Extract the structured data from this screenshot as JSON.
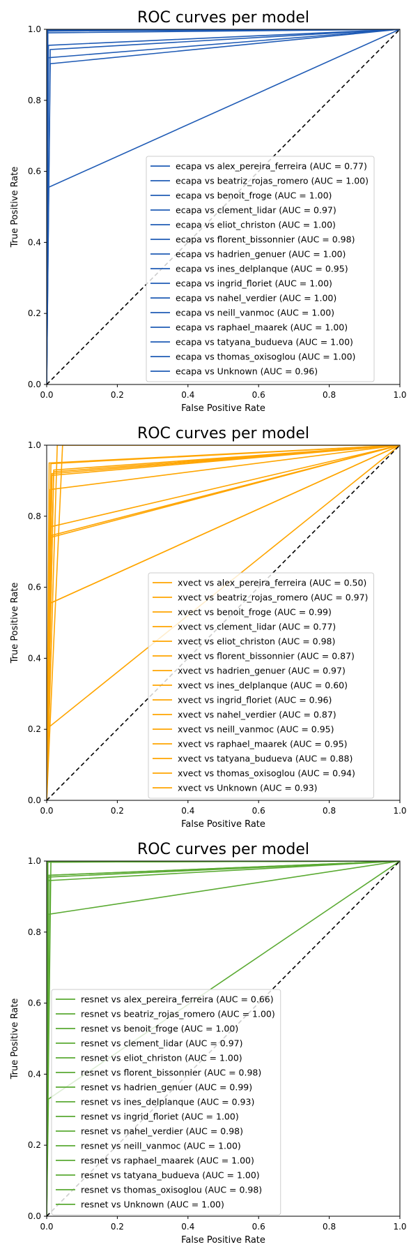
{
  "chart_data": [
    {
      "type": "line",
      "title": "ROC curves per model",
      "xlabel": "False Positive Rate",
      "ylabel": "True Positive Rate",
      "xlim": [
        0,
        1
      ],
      "ylim": [
        0,
        1
      ],
      "xticks": [
        "0.0",
        "0.2",
        "0.4",
        "0.6",
        "0.8",
        "1.0"
      ],
      "yticks": [
        "0.0",
        "0.2",
        "0.4",
        "0.6",
        "0.8",
        "1.0"
      ],
      "grid": false,
      "legend_position": "lower-right",
      "color": "#1f5bb5",
      "diagonal_color": "#000000",
      "series": [
        {
          "name": "ecapa vs alex_pereira_ferreira (AUC = 0.77)",
          "x": [
            0,
            0.005,
            1
          ],
          "y": [
            0,
            0.555,
            1
          ]
        },
        {
          "name": "ecapa vs beatriz_rojas_romero (AUC = 1.00)",
          "x": [
            0,
            0.003,
            1
          ],
          "y": [
            0,
            1.0,
            1
          ]
        },
        {
          "name": "ecapa vs benoit_froge (AUC = 1.00)",
          "x": [
            0,
            0.003,
            1
          ],
          "y": [
            0,
            0.995,
            1
          ]
        },
        {
          "name": "ecapa vs clement_lidar (AUC = 0.97)",
          "x": [
            0,
            0.01,
            1
          ],
          "y": [
            0,
            0.943,
            1
          ]
        },
        {
          "name": "ecapa vs eliot_christon (AUC = 1.00)",
          "x": [
            0,
            0.003,
            1
          ],
          "y": [
            0,
            0.99,
            1
          ]
        },
        {
          "name": "ecapa vs florent_bissonnier (AUC = 0.98)",
          "x": [
            0,
            0.005,
            1
          ],
          "y": [
            0,
            0.955,
            1
          ]
        },
        {
          "name": "ecapa vs hadrien_genuer (AUC = 1.00)",
          "x": [
            0,
            0.003,
            1
          ],
          "y": [
            0,
            0.998,
            1
          ]
        },
        {
          "name": "ecapa vs ines_delplanque (AUC = 0.95)",
          "x": [
            0,
            0.01,
            1
          ],
          "y": [
            0,
            0.903,
            1
          ]
        },
        {
          "name": "ecapa vs ingrid_floriet (AUC = 1.00)",
          "x": [
            0,
            0.003,
            1
          ],
          "y": [
            0,
            0.997,
            1
          ]
        },
        {
          "name": "ecapa vs nahel_verdier (AUC = 1.00)",
          "x": [
            0,
            0.003,
            1
          ],
          "y": [
            0,
            0.996,
            1
          ]
        },
        {
          "name": "ecapa vs neill_vanmoc (AUC = 1.00)",
          "x": [
            0,
            0.003,
            1
          ],
          "y": [
            0,
            0.999,
            1
          ]
        },
        {
          "name": "ecapa vs raphael_maarek (AUC = 1.00)",
          "x": [
            0,
            0.003,
            1
          ],
          "y": [
            0,
            0.998,
            1
          ]
        },
        {
          "name": "ecapa vs tatyana_budueva (AUC = 1.00)",
          "x": [
            0,
            0.003,
            1
          ],
          "y": [
            0,
            0.997,
            1
          ]
        },
        {
          "name": "ecapa vs thomas_oxisoglou (AUC = 1.00)",
          "x": [
            0,
            0.003,
            1
          ],
          "y": [
            0,
            0.999,
            1
          ]
        },
        {
          "name": "ecapa vs Unknown (AUC = 0.96)",
          "x": [
            0,
            0.005,
            1
          ],
          "y": [
            0,
            0.92,
            1
          ]
        }
      ]
    },
    {
      "type": "line",
      "title": "ROC curves per model",
      "xlabel": "False Positive Rate",
      "ylabel": "True Positive Rate",
      "xlim": [
        0,
        1
      ],
      "ylim": [
        0,
        1
      ],
      "xticks": [
        "0.0",
        "0.2",
        "0.4",
        "0.6",
        "0.8",
        "1.0"
      ],
      "yticks": [
        "0.0",
        "0.2",
        "0.4",
        "0.6",
        "0.8",
        "1.0"
      ],
      "grid": false,
      "legend_position": "lower-right",
      "color": "#ffa500",
      "diagonal_color": "#000000",
      "series": [
        {
          "name": "xvect vs alex_pereira_ferreira (AUC = 0.50)",
          "x": [
            0,
            0.005,
            1
          ],
          "y": [
            0,
            0.205,
            1
          ]
        },
        {
          "name": "xvect vs beatriz_rojas_romero (AUC = 0.97)",
          "x": [
            0,
            0.012,
            1
          ],
          "y": [
            0,
            0.948,
            1
          ]
        },
        {
          "name": "xvect vs benoit_froge (AUC = 0.99)",
          "x": [
            0,
            0.007,
            1
          ],
          "y": [
            0,
            0.95,
            1
          ]
        },
        {
          "name": "xvect vs clement_lidar (AUC = 0.77)",
          "x": [
            0,
            0.01,
            1
          ],
          "y": [
            0,
            0.555,
            1
          ]
        },
        {
          "name": "xvect vs eliot_christon (AUC = 0.98)",
          "x": [
            0,
            0.02,
            1
          ],
          "y": [
            0,
            0.925,
            1
          ]
        },
        {
          "name": "xvect vs florent_bissonnier (AUC = 0.87)",
          "x": [
            0,
            0.01,
            1
          ],
          "y": [
            0,
            0.745,
            1
          ]
        },
        {
          "name": "xvect vs hadrien_genuer (AUC = 0.97)",
          "x": [
            0,
            0.045,
            1
          ],
          "y": [
            0,
            1.0,
            1
          ]
        },
        {
          "name": "xvect vs ines_delplanque (AUC = 0.60)",
          "x": [
            0,
            0.01,
            1
          ],
          "y": [
            0,
            0.555,
            1
          ]
        },
        {
          "name": "xvect vs ingrid_floriet (AUC = 0.96)",
          "x": [
            0,
            0.015,
            1
          ],
          "y": [
            0,
            0.915,
            1
          ]
        },
        {
          "name": "xvect vs nahel_verdier (AUC = 0.87)",
          "x": [
            0,
            0.01,
            1
          ],
          "y": [
            0,
            0.77,
            1
          ]
        },
        {
          "name": "xvect vs neill_vanmoc (AUC = 0.95)",
          "x": [
            0,
            0.03,
            1
          ],
          "y": [
            0,
            1.0,
            1
          ]
        },
        {
          "name": "xvect vs raphael_maarek (AUC = 0.95)",
          "x": [
            0,
            0.01,
            1
          ],
          "y": [
            0,
            0.875,
            1
          ]
        },
        {
          "name": "xvect vs tatyana_budueva (AUC = 0.88)",
          "x": [
            0,
            0.01,
            1
          ],
          "y": [
            0,
            0.74,
            1
          ]
        },
        {
          "name": "xvect vs thomas_oxisoglou (AUC = 0.94)",
          "x": [
            0,
            0.015,
            1
          ],
          "y": [
            0,
            0.92,
            1
          ]
        },
        {
          "name": "xvect vs Unknown (AUC = 0.93)",
          "x": [
            0,
            0.02,
            1
          ],
          "y": [
            0,
            0.93,
            1
          ]
        }
      ]
    },
    {
      "type": "line",
      "title": "ROC curves per model",
      "xlabel": "False Positive Rate",
      "ylabel": "True Positive Rate",
      "xlim": [
        0,
        1
      ],
      "ylim": [
        0,
        1
      ],
      "xticks": [
        "0.0",
        "0.2",
        "0.4",
        "0.6",
        "0.8",
        "1.0"
      ],
      "yticks": [
        "0.0",
        "0.2",
        "0.4",
        "0.6",
        "0.8",
        "1.0"
      ],
      "grid": false,
      "legend_position": "lower-left",
      "color": "#5aaa32",
      "diagonal_color": "#000000",
      "series": [
        {
          "name": "resnet vs alex_pereira_ferreira (AUC = 0.66)",
          "x": [
            0,
            0.005,
            1
          ],
          "y": [
            0,
            0.33,
            1
          ]
        },
        {
          "name": "resnet vs beatriz_rojas_romero (AUC = 1.00)",
          "x": [
            0,
            0.003,
            1
          ],
          "y": [
            0,
            1.0,
            1
          ]
        },
        {
          "name": "resnet vs benoit_froge (AUC = 1.00)",
          "x": [
            0,
            0.003,
            1
          ],
          "y": [
            0,
            0.998,
            1
          ]
        },
        {
          "name": "resnet vs clement_lidar (AUC = 0.97)",
          "x": [
            0,
            0.005,
            1
          ],
          "y": [
            0,
            0.945,
            1
          ]
        },
        {
          "name": "resnet vs eliot_christon (AUC = 1.00)",
          "x": [
            0,
            0.003,
            1
          ],
          "y": [
            0,
            0.999,
            1
          ]
        },
        {
          "name": "resnet vs florent_bissonnier (AUC = 0.98)",
          "x": [
            0,
            0.01,
            1
          ],
          "y": [
            0,
            0.96,
            1
          ]
        },
        {
          "name": "resnet vs hadrien_genuer (AUC = 0.99)",
          "x": [
            0,
            0.012,
            1
          ],
          "y": [
            0,
            1.0,
            1
          ]
        },
        {
          "name": "resnet vs ines_delplanque (AUC = 0.93)",
          "x": [
            0,
            0.005,
            1
          ],
          "y": [
            0,
            0.85,
            1
          ]
        },
        {
          "name": "resnet vs ingrid_floriet (AUC = 1.00)",
          "x": [
            0,
            0.003,
            1
          ],
          "y": [
            0,
            0.997,
            1
          ]
        },
        {
          "name": "resnet vs nahel_verdier (AUC = 0.98)",
          "x": [
            0,
            0.005,
            1
          ],
          "y": [
            0,
            0.955,
            1
          ]
        },
        {
          "name": "resnet vs neill_vanmoc (AUC = 1.00)",
          "x": [
            0,
            0.003,
            1
          ],
          "y": [
            0,
            0.999,
            1
          ]
        },
        {
          "name": "resnet vs raphael_maarek (AUC = 1.00)",
          "x": [
            0,
            0.003,
            1
          ],
          "y": [
            0,
            0.998,
            1
          ]
        },
        {
          "name": "resnet vs tatyana_budueva (AUC = 1.00)",
          "x": [
            0,
            0.003,
            1
          ],
          "y": [
            0,
            0.997,
            1
          ]
        },
        {
          "name": "resnet vs thomas_oxisoglou (AUC = 0.98)",
          "x": [
            0,
            0.005,
            1
          ],
          "y": [
            0,
            0.96,
            1
          ]
        },
        {
          "name": "resnet vs Unknown (AUC = 1.00)",
          "x": [
            0,
            0.003,
            1
          ],
          "y": [
            0,
            0.999,
            1
          ]
        }
      ]
    }
  ]
}
